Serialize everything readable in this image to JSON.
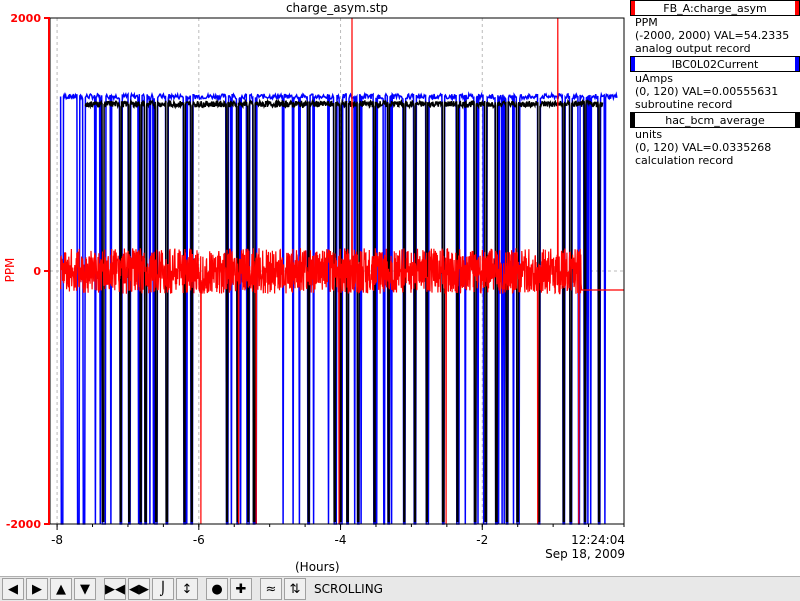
{
  "title": "charge_asym.stp",
  "chart_data": {
    "type": "line",
    "title": "charge_asym.stp",
    "xlabel": "(Hours)",
    "ylabel": "PPM",
    "xlim": [
      -8.1,
      0
    ],
    "ylim": [
      -2000,
      2000
    ],
    "x_ticks": [
      "-8",
      "-6",
      "-4",
      "-2"
    ],
    "y_ticks": [
      "2000",
      "0",
      "-2000"
    ],
    "grid": true,
    "timestamp": [
      "12:24:04",
      "Sep 18, 2009"
    ],
    "series": [
      {
        "name": "FB_A:charge_asym",
        "color": "#ff0000",
        "baseline": 0,
        "noise": 180
      },
      {
        "name": "IBC0L02Current",
        "color": "#0000ff",
        "baseline": 1380,
        "dropouts": true
      },
      {
        "name": "hac_bcm_average",
        "color": "#000000",
        "baseline": 1320,
        "dropouts": true
      }
    ]
  },
  "legend": [
    {
      "name": "FB_A:charge_asym",
      "color": "#ff0000",
      "units": "PPM",
      "range": "(-2000, 2000) VAL=54.2335",
      "type": "analog output record"
    },
    {
      "name": "IBC0L02Current",
      "color": "#0000ff",
      "units": "uAmps",
      "range": "(0, 120) VAL=0.00555631",
      "type": "subroutine record"
    },
    {
      "name": "hac_bcm_average",
      "color": "#000000",
      "units": "units",
      "range": "(0, 120) VAL=0.0335268",
      "type": "calculation record"
    }
  ],
  "toolbar": {
    "status": "SCROLLING",
    "buttons": [
      "left-arrow-icon",
      "right-arrow-icon",
      "up-arrow-icon",
      "down-arrow-icon",
      "expand-horizontal-icon",
      "compress-horizontal-icon",
      "expand-vertical-icon",
      "compress-vertical-icon",
      "zoom-circle-icon",
      "add-plus-icon",
      "graph-icon",
      "sort-icon"
    ]
  }
}
